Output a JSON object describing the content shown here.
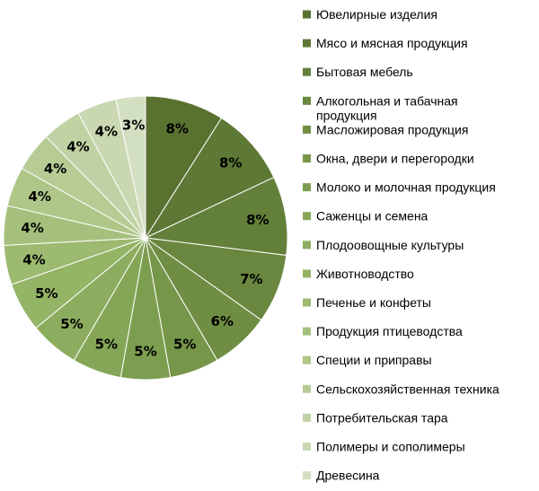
{
  "chart_data": {
    "type": "pie",
    "title": "",
    "value_suffix": "%",
    "legend_position": "right",
    "start_direction": "top",
    "order": "clockwise",
    "slices": [
      {
        "label": "Ювелирные изделия",
        "value": 8,
        "color": "#5a7230"
      },
      {
        "label": "Мясо и мясная продукция",
        "value": 8,
        "color": "#5e7835"
      },
      {
        "label": "Бытовая мебель",
        "value": 8,
        "color": "#63803a"
      },
      {
        "label": "Алкогольная и табачная продукция",
        "value": 7,
        "color": "#69873f"
      },
      {
        "label": "Масложировая продукция",
        "value": 6,
        "color": "#6f8e44"
      },
      {
        "label": "Окна, двери и перегородки",
        "value": 5,
        "color": "#76964a"
      },
      {
        "label": "Молоко и молочная продукция",
        "value": 5,
        "color": "#7d9e50"
      },
      {
        "label": "Саженцы и семена",
        "value": 5,
        "color": "#85a657"
      },
      {
        "label": "Плодоовощные культуры",
        "value": 5,
        "color": "#8cad5f"
      },
      {
        "label": "Животноводство",
        "value": 5,
        "color": "#94b466"
      },
      {
        "label": "Печенье и конфеты",
        "value": 4,
        "color": "#9cba70"
      },
      {
        "label": "Продукция птицеводства",
        "value": 4,
        "color": "#a5c07c"
      },
      {
        "label": "Специи и приправы",
        "value": 4,
        "color": "#aec688"
      },
      {
        "label": "Сельскохозяйственная техника",
        "value": 4,
        "color": "#b7cc95"
      },
      {
        "label": "Потребительская тара",
        "value": 4,
        "color": "#c0d2a3"
      },
      {
        "label": "Полимеры и сополимеры",
        "value": 4,
        "color": "#c9d8b1"
      },
      {
        "label": "Древесина",
        "value": 3,
        "color": "#d3dfc1"
      }
    ]
  }
}
